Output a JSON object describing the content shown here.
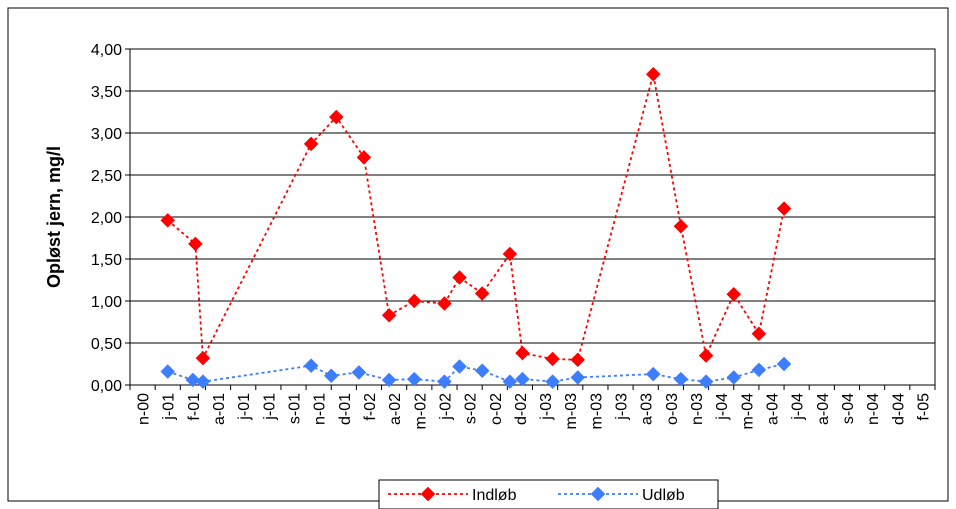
{
  "chart_data": {
    "type": "line",
    "title": "",
    "xlabel": "",
    "ylabel": "Opløst jern, mg/l",
    "ylim": [
      0,
      4
    ],
    "y_ticks": [
      "0,00",
      "0,50",
      "1,00",
      "1,50",
      "2,00",
      "2,50",
      "3,00",
      "3,50",
      "4,00"
    ],
    "x_tick_labels": [
      "n-00",
      "j-01",
      "f-01",
      "a-01",
      "j-01",
      "j-01",
      "s-01",
      "n-01",
      "d-01",
      "f-02",
      "a-02",
      "m-02",
      "j-02",
      "s-02",
      "o-02",
      "d-02",
      "j-03",
      "m-03",
      "m-03",
      "j-03",
      "a-03",
      "o-03",
      "n-03",
      "j-04",
      "m-04",
      "a-04",
      "j-04",
      "a-04",
      "s-04",
      "n-04",
      "d-04",
      "f-05"
    ],
    "grid": "horizontal",
    "legend_position": "bottom",
    "series": [
      {
        "name": "Indløb",
        "color": "#ff0000",
        "line_style": "dotted",
        "marker": "diamond",
        "points": [
          [
            1.0,
            1.96
          ],
          [
            2.1,
            1.68
          ],
          [
            2.4,
            0.32
          ],
          [
            6.7,
            2.87
          ],
          [
            7.7,
            3.19
          ],
          [
            8.8,
            2.71
          ],
          [
            9.8,
            0.83
          ],
          [
            10.8,
            1.0
          ],
          [
            12.0,
            0.97
          ],
          [
            12.6,
            1.28
          ],
          [
            13.5,
            1.09
          ],
          [
            14.6,
            1.56
          ],
          [
            15.1,
            0.38
          ],
          [
            16.3,
            0.31
          ],
          [
            17.3,
            0.3
          ],
          [
            20.3,
            3.7
          ],
          [
            21.4,
            1.89
          ],
          [
            22.4,
            0.35
          ],
          [
            23.5,
            1.08
          ],
          [
            24.5,
            0.61
          ],
          [
            25.5,
            2.1
          ]
        ]
      },
      {
        "name": "Udløb",
        "color": "#3d7dff",
        "line_style": "dotted",
        "marker": "diamond",
        "points": [
          [
            1.0,
            0.16
          ],
          [
            2.0,
            0.06
          ],
          [
            2.4,
            0.04
          ],
          [
            6.7,
            0.23
          ],
          [
            7.5,
            0.11
          ],
          [
            8.6,
            0.15
          ],
          [
            9.8,
            0.06
          ],
          [
            10.8,
            0.07
          ],
          [
            12.0,
            0.04
          ],
          [
            12.6,
            0.22
          ],
          [
            13.5,
            0.17
          ],
          [
            14.6,
            0.04
          ],
          [
            15.1,
            0.07
          ],
          [
            16.3,
            0.04
          ],
          [
            17.3,
            0.09
          ],
          [
            20.3,
            0.13
          ],
          [
            21.4,
            0.07
          ],
          [
            22.4,
            0.04
          ],
          [
            23.5,
            0.09
          ],
          [
            24.5,
            0.18
          ],
          [
            25.5,
            0.25
          ]
        ]
      }
    ]
  }
}
